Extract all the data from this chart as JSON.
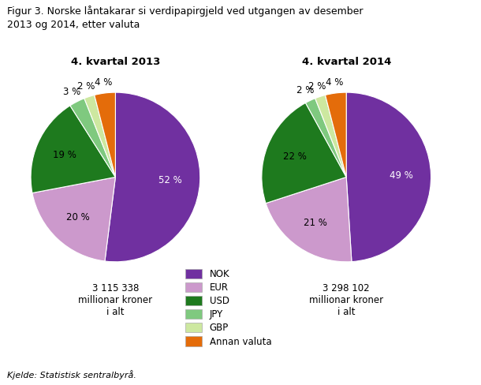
{
  "title": "Figur 3. Norske låntakarar si verdipapirgjeld ved utgangen av desember\n2013 og 2014, etter valuta",
  "pie1_title": "4. kvartal 2013",
  "pie2_title": "4. kvartal 2014",
  "pie1_values": [
    52,
    20,
    19,
    3,
    2,
    4
  ],
  "pie2_values": [
    49,
    21,
    22,
    2,
    2,
    4
  ],
  "labels": [
    "NOK",
    "EUR",
    "USD",
    "JPY",
    "GBP",
    "Annan valuta"
  ],
  "colors": [
    "#7030a0",
    "#cc99cc",
    "#1e7a1e",
    "#7fc97f",
    "#cde8a0",
    "#e46c0a"
  ],
  "pie1_total": "3 115 338\nmillionar kroner\ni alt",
  "pie2_total": "3 298 102\nmillionar kroner\ni alt",
  "source": "Kjelde: Statistisk sentralbyrå.",
  "pct_labels_1": [
    "52 %",
    "20 %",
    "19 %",
    "3 %",
    "2 %",
    "4 %"
  ],
  "pct_labels_2": [
    "49 %",
    "21 %",
    "22 %",
    "2 %",
    "2 %",
    "4 %"
  ],
  "pct_colors_1": [
    "white",
    "black",
    "black",
    "black",
    "black",
    "black"
  ],
  "pct_colors_2": [
    "white",
    "black",
    "black",
    "black",
    "black",
    "black"
  ],
  "background_color": "#ffffff"
}
